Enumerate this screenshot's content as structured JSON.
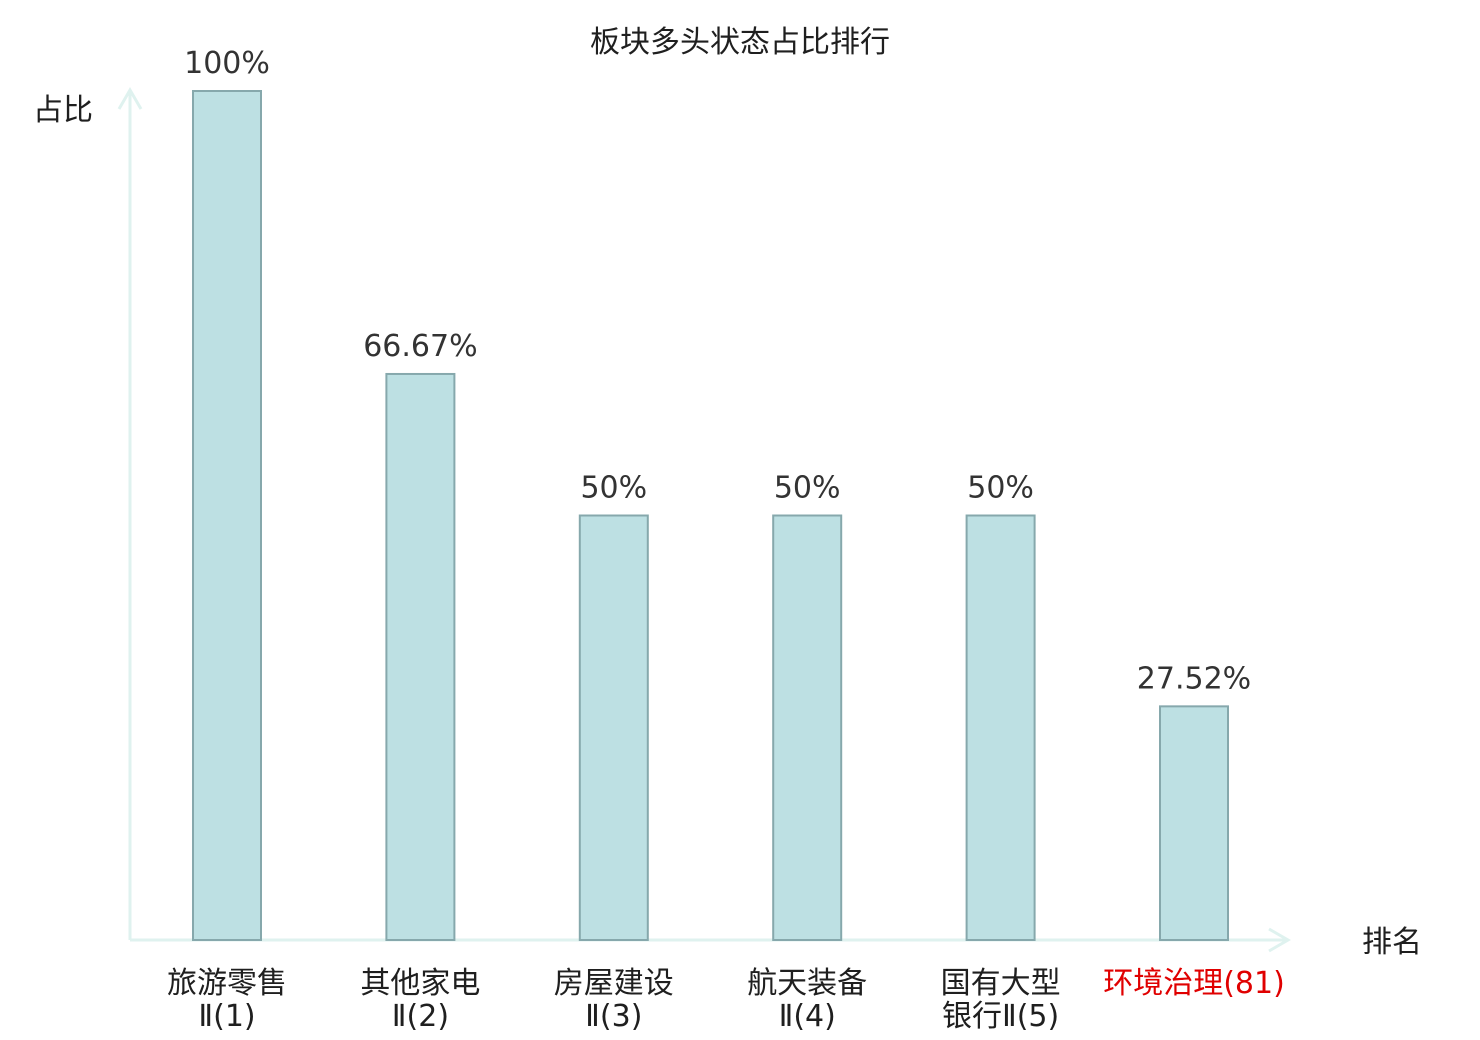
{
  "chart_data": {
    "type": "bar",
    "title": "板块多头状态占比排行",
    "xlabel": "排名",
    "ylabel": "占比",
    "ylim": [
      0,
      100
    ],
    "grid": false,
    "categories": [
      {
        "lines": [
          "旅游零售",
          "Ⅱ(1)"
        ],
        "highlight": false
      },
      {
        "lines": [
          "其他家电",
          "Ⅱ(2)"
        ],
        "highlight": false
      },
      {
        "lines": [
          "房屋建设",
          "Ⅱ(3)"
        ],
        "highlight": false
      },
      {
        "lines": [
          "航天装备",
          "Ⅱ(4)"
        ],
        "highlight": false
      },
      {
        "lines": [
          "国有大型",
          "银行Ⅱ(5)"
        ],
        "highlight": false
      },
      {
        "lines": [
          "环境治理(81)"
        ],
        "highlight": true
      }
    ],
    "values": [
      100,
      66.67,
      50,
      50,
      50,
      27.52
    ],
    "value_labels": [
      "100%",
      "66.67%",
      "50%",
      "50%",
      "50%",
      "27.52%"
    ],
    "colors": {
      "bar_fill": "#bde0e3",
      "bar_stroke": "#86a8ac",
      "axis": "#dff2ef",
      "highlight": "#e00000"
    }
  }
}
